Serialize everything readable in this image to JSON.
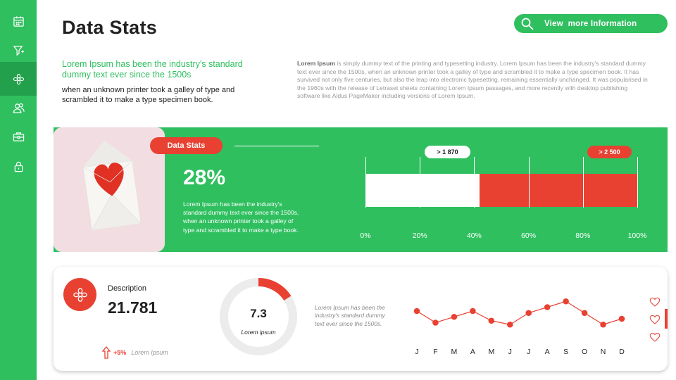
{
  "sidebar": {
    "items": [
      {
        "icon": "calendar-icon",
        "active": false
      },
      {
        "icon": "filter-icon",
        "active": false
      },
      {
        "icon": "flower-icon",
        "active": true
      },
      {
        "icon": "users-icon",
        "active": false
      },
      {
        "icon": "briefcase-icon",
        "active": false
      },
      {
        "icon": "lock-icon",
        "active": false
      }
    ]
  },
  "header": {
    "title": "Data Stats",
    "button_label": "View  more Information"
  },
  "intro": {
    "headline": "Lorem Ipsum has been the industry's standard dummy text ever since the 1500s",
    "subtext": "when an unknown printer took a galley of type and scrambled it to make a type specimen book.",
    "paragraph_lead": "Lorem Ipsum",
    "paragraph_body": " is  simply dummy text of the printing and typesetting industry. Lorem Ipsum has been the industry's standard dummy text ever since the 1500s, when an unknown printer took a galley of type and scrambled it to make a type specimen book. It has survived  not only five centuries, but also the leap into electronic typesetting, remaining essentially  unchanged. It was popularised in the 1960s with the release  of Letraset sheets containing Lorem Ipsum passages,  and more recently with desktop publishing software like Aldus PageMaker including versions of Lorem Ipsum."
  },
  "band": {
    "pill_label": "Data Stats",
    "percent": "28%",
    "text": "Lorem Ipsum has been the industry's standard dummy text ever since the 1500s, when an unknown printer took a galley of type and scrambled it to make a type book."
  },
  "chart_data": [
    {
      "type": "bar",
      "orientation": "horizontal",
      "segments": [
        {
          "color": "#ffffff",
          "start": 0,
          "end": 42
        },
        {
          "color": "#e84132",
          "start": 42,
          "end": 100
        }
      ],
      "ticks": [
        "0%",
        "20%",
        "40%",
        "60%",
        "80%",
        "100%"
      ],
      "xlim": [
        0,
        100
      ],
      "markers": [
        {
          "label": "> 1 870",
          "value": 30,
          "style": "white"
        },
        {
          "label": "> 2 500",
          "value": 90,
          "style": "red"
        }
      ],
      "grid": true
    },
    {
      "type": "pie",
      "subtype": "donut",
      "values": [
        16,
        84
      ],
      "center_value": "7.3",
      "center_label": "Lorem ipsum",
      "colors": [
        "#e84132",
        "#ececec"
      ]
    },
    {
      "type": "line",
      "categories": [
        "J",
        "F",
        "M",
        "A",
        "M",
        "J",
        "J",
        "A",
        "S",
        "O",
        "N",
        "D"
      ],
      "values": [
        6,
        3,
        4.5,
        6,
        3.5,
        2.5,
        5.5,
        7,
        8.5,
        5.5,
        2.5,
        4
      ],
      "ylim": [
        0,
        10
      ],
      "color": "#e84132",
      "grid": false
    }
  ],
  "stats_card": {
    "description_label": "Description",
    "description_value": "21.781",
    "trend_value": "+5%",
    "trend_label": "Lorem Ipsum",
    "donut_text": "Lorem Ipsum has been the industry's standard dummy text ever since the 1500s."
  },
  "colors": {
    "green": "#2fbf5f",
    "dark_green": "#22a04c",
    "red": "#e84132"
  }
}
